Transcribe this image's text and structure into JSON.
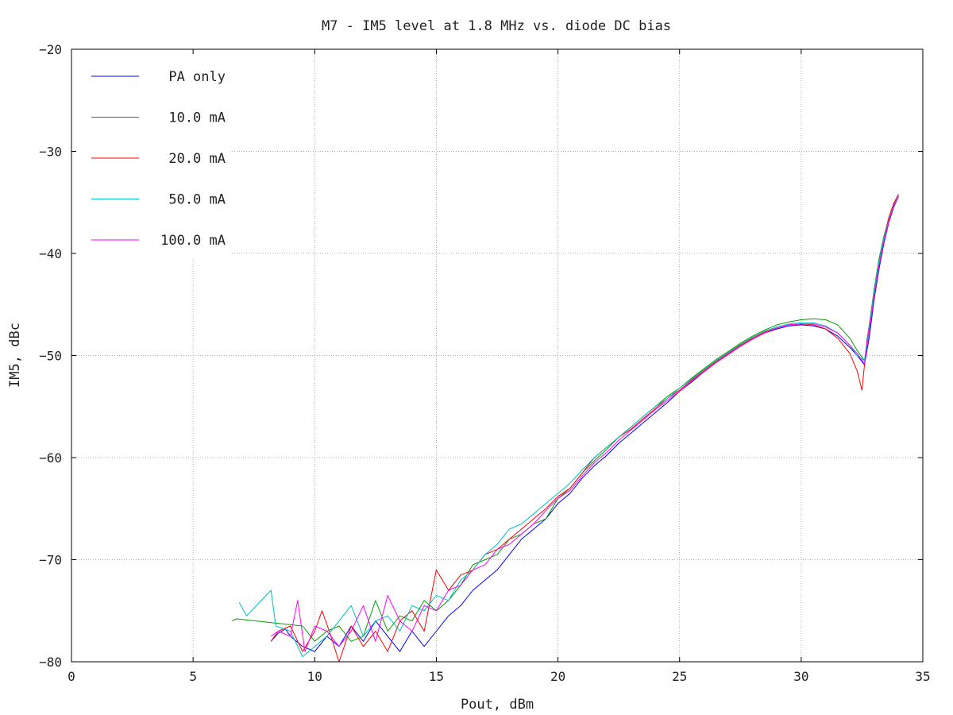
{
  "chart_data": {
    "type": "line",
    "title": "M7 - IM5 level at 1.8 MHz vs. diode DC bias",
    "xlabel": "Pout, dBm",
    "ylabel": "IM5, dBc",
    "xlim": [
      0,
      35
    ],
    "ylim": [
      -80,
      -20
    ],
    "xticks": [
      "0",
      "5",
      "10",
      "15",
      "20",
      "25",
      "30",
      "35"
    ],
    "yticks": [
      "-20",
      "-30",
      "-40",
      "-50",
      "-60",
      "-70",
      "-80"
    ],
    "grid": true,
    "legend_position": "top-left",
    "series": [
      {
        "name": "PA only",
        "color": "#0000ff",
        "x": [
          8.2,
          8.5,
          8.8,
          9.0,
          9.5,
          10.0,
          10.5,
          11.0,
          11.5,
          12.0,
          12.5,
          13.0,
          13.5,
          14.0,
          14.5,
          15.0,
          15.5,
          16.0,
          16.5,
          17.0,
          17.5,
          18.0,
          18.5,
          19.0,
          19.5,
          20.0,
          20.5,
          21.0,
          21.5,
          22.0,
          22.5,
          23.0,
          23.5,
          24.0,
          24.5,
          25.0,
          25.5,
          26.0,
          26.5,
          27.0,
          27.5,
          28.0,
          28.5,
          29.0,
          29.5,
          30.0,
          30.5,
          31.0,
          31.5,
          32.0,
          32.3,
          32.6,
          32.8,
          33.0,
          33.2,
          33.4,
          33.6,
          33.8,
          34.0
        ],
        "y": [
          -78.0,
          -77.2,
          -76.8,
          -77.5,
          -78.5,
          -79.0,
          -77.5,
          -78.5,
          -76.5,
          -78.0,
          -76.0,
          -77.5,
          -79.0,
          -77.0,
          -78.5,
          -77.0,
          -75.5,
          -74.5,
          -73.0,
          -72.0,
          -71.0,
          -69.5,
          -68.0,
          -67.0,
          -66.0,
          -64.5,
          -63.5,
          -62.0,
          -60.8,
          -59.8,
          -58.6,
          -57.6,
          -56.6,
          -55.6,
          -54.6,
          -53.5,
          -52.6,
          -51.6,
          -50.7,
          -49.9,
          -49.1,
          -48.4,
          -47.8,
          -47.4,
          -47.1,
          -47.0,
          -47.1,
          -47.4,
          -48.1,
          -49.2,
          -50.0,
          -50.9,
          -48.2,
          -44.5,
          -41.5,
          -39.0,
          -37.0,
          -35.5,
          -34.4
        ]
      },
      {
        "name": "10.0 mA",
        "color": "#00a000",
        "x": [
          6.6,
          6.8,
          9.5,
          10.0,
          10.5,
          11.0,
          11.5,
          12.0,
          12.5,
          13.0,
          13.5,
          14.0,
          14.5,
          15.0,
          15.5,
          16.0,
          16.5,
          17.0,
          17.5,
          18.0,
          18.5,
          19.0,
          19.5,
          20.0,
          20.5,
          21.0,
          21.5,
          22.0,
          22.5,
          23.0,
          23.5,
          24.0,
          24.5,
          25.0,
          25.5,
          26.0,
          26.5,
          27.0,
          27.5,
          28.0,
          28.5,
          29.0,
          29.5,
          30.0,
          30.5,
          31.0,
          31.5,
          32.0,
          32.3,
          32.6,
          32.8,
          33.0,
          33.2,
          33.4,
          33.6,
          33.8,
          34.0
        ],
        "y": [
          -76.0,
          -75.8,
          -76.5,
          -78.0,
          -77.0,
          -76.5,
          -78.0,
          -77.5,
          -74.0,
          -77.0,
          -75.5,
          -76.0,
          -74.0,
          -75.0,
          -74.0,
          -72.5,
          -70.5,
          -70.0,
          -69.5,
          -68.0,
          -67.5,
          -66.5,
          -66.0,
          -64.0,
          -63.0,
          -61.5,
          -60.3,
          -59.2,
          -58.0,
          -57.0,
          -56.0,
          -55.0,
          -54.0,
          -53.2,
          -52.2,
          -51.3,
          -50.4,
          -49.6,
          -48.8,
          -48.1,
          -47.5,
          -47.0,
          -46.7,
          -46.5,
          -46.4,
          -46.5,
          -47.0,
          -48.3,
          -49.5,
          -50.5,
          -47.0,
          -43.5,
          -40.5,
          -38.3,
          -36.6,
          -35.2,
          -34.3
        ]
      },
      {
        "name": "20.0 mA",
        "color": "#ff0000",
        "x": [
          8.2,
          8.5,
          9.0,
          9.5,
          10.0,
          10.3,
          10.6,
          11.0,
          11.5,
          12.0,
          12.5,
          13.0,
          13.5,
          14.0,
          14.5,
          15.0,
          15.5,
          16.0,
          16.5,
          17.0,
          17.5,
          18.0,
          18.5,
          19.0,
          19.5,
          20.0,
          20.5,
          21.0,
          21.5,
          22.0,
          22.5,
          23.0,
          23.5,
          24.0,
          24.5,
          25.0,
          25.5,
          26.0,
          26.5,
          27.0,
          27.5,
          28.0,
          28.5,
          29.0,
          29.5,
          30.0,
          30.5,
          31.0,
          31.5,
          32.0,
          32.3,
          32.5,
          32.7,
          33.0,
          33.2,
          33.4,
          33.6,
          33.8,
          34.0
        ],
        "y": [
          -78.0,
          -77.0,
          -76.5,
          -79.0,
          -77.0,
          -75.0,
          -77.0,
          -80.0,
          -76.5,
          -78.5,
          -77.0,
          -79.0,
          -76.0,
          -75.0,
          -77.0,
          -71.0,
          -73.0,
          -71.5,
          -71.0,
          -69.5,
          -69.0,
          -68.0,
          -67.0,
          -66.0,
          -65.0,
          -63.8,
          -63.0,
          -61.5,
          -60.0,
          -59.0,
          -58.0,
          -57.2,
          -56.2,
          -55.2,
          -54.2,
          -53.4,
          -52.4,
          -51.5,
          -50.6,
          -49.8,
          -49.0,
          -48.3,
          -47.7,
          -47.3,
          -47.0,
          -46.9,
          -47.0,
          -47.4,
          -48.3,
          -49.8,
          -51.5,
          -53.4,
          -48.5,
          -44.0,
          -41.0,
          -38.5,
          -36.5,
          -35.1,
          -34.2
        ]
      },
      {
        "name": "50.0 mA",
        "color": "#00c0c0",
        "x": [
          6.9,
          7.2,
          8.2,
          8.4,
          9.0,
          9.5,
          10.0,
          10.5,
          11.0,
          11.5,
          12.0,
          12.5,
          13.0,
          13.5,
          14.0,
          14.5,
          15.0,
          15.5,
          16.0,
          16.5,
          17.0,
          17.5,
          18.0,
          18.5,
          19.0,
          19.5,
          20.0,
          20.5,
          21.0,
          21.5,
          22.0,
          22.5,
          23.0,
          23.5,
          24.0,
          24.5,
          25.0,
          25.5,
          26.0,
          26.5,
          27.0,
          27.5,
          28.0,
          28.5,
          29.0,
          29.5,
          30.0,
          30.5,
          31.0,
          31.5,
          32.0,
          32.3,
          32.6,
          32.8,
          33.0,
          33.2,
          33.4,
          33.6,
          33.8,
          34.0
        ],
        "y": [
          -74.2,
          -75.5,
          -73.0,
          -76.5,
          -77.0,
          -79.5,
          -78.5,
          -77.5,
          -76.0,
          -74.5,
          -77.5,
          -76.0,
          -75.5,
          -77.0,
          -74.5,
          -75.0,
          -73.5,
          -74.0,
          -72.0,
          -71.0,
          -69.5,
          -68.5,
          -67.0,
          -66.5,
          -65.5,
          -64.5,
          -63.5,
          -62.5,
          -61.2,
          -60.0,
          -59.0,
          -58.0,
          -57.0,
          -56.0,
          -55.0,
          -54.2,
          -53.2,
          -52.3,
          -51.4,
          -50.5,
          -49.7,
          -48.9,
          -48.2,
          -47.6,
          -47.2,
          -46.9,
          -46.8,
          -46.8,
          -47.1,
          -47.8,
          -49.0,
          -50.0,
          -50.5,
          -47.2,
          -43.8,
          -40.8,
          -38.5,
          -36.8,
          -35.3,
          -34.3
        ]
      },
      {
        "name": "100.0 mA",
        "color": "#ff00ff",
        "x": [
          8.2,
          8.5,
          9.0,
          9.3,
          9.6,
          10.0,
          10.5,
          11.0,
          11.5,
          12.0,
          12.5,
          13.0,
          13.5,
          14.0,
          14.5,
          15.0,
          15.5,
          16.0,
          16.5,
          17.0,
          17.5,
          18.0,
          18.5,
          19.0,
          19.5,
          20.0,
          20.5,
          21.0,
          21.5,
          22.0,
          22.5,
          23.0,
          23.5,
          24.0,
          24.5,
          25.0,
          25.5,
          26.0,
          26.5,
          27.0,
          27.5,
          28.0,
          28.5,
          29.0,
          29.5,
          30.0,
          30.5,
          31.0,
          31.5,
          32.0,
          32.3,
          32.6,
          32.8,
          33.0,
          33.2,
          33.4,
          33.6,
          33.8,
          34.0
        ],
        "y": [
          -77.5,
          -77.0,
          -77.5,
          -74.0,
          -79.0,
          -76.5,
          -77.0,
          -78.5,
          -77.0,
          -74.5,
          -78.0,
          -73.5,
          -76.0,
          -77.0,
          -74.5,
          -75.0,
          -73.0,
          -72.5,
          -71.0,
          -70.5,
          -69.0,
          -68.5,
          -67.5,
          -66.5,
          -65.2,
          -64.0,
          -63.2,
          -61.8,
          -60.5,
          -59.5,
          -58.3,
          -57.3,
          -56.3,
          -55.3,
          -54.4,
          -53.5,
          -52.5,
          -51.6,
          -50.7,
          -49.9,
          -49.1,
          -48.4,
          -47.8,
          -47.3,
          -47.0,
          -46.9,
          -46.9,
          -47.2,
          -47.8,
          -49.0,
          -49.8,
          -50.8,
          -47.6,
          -44.2,
          -41.2,
          -38.8,
          -36.9,
          -35.4,
          -34.4
        ]
      }
    ]
  }
}
